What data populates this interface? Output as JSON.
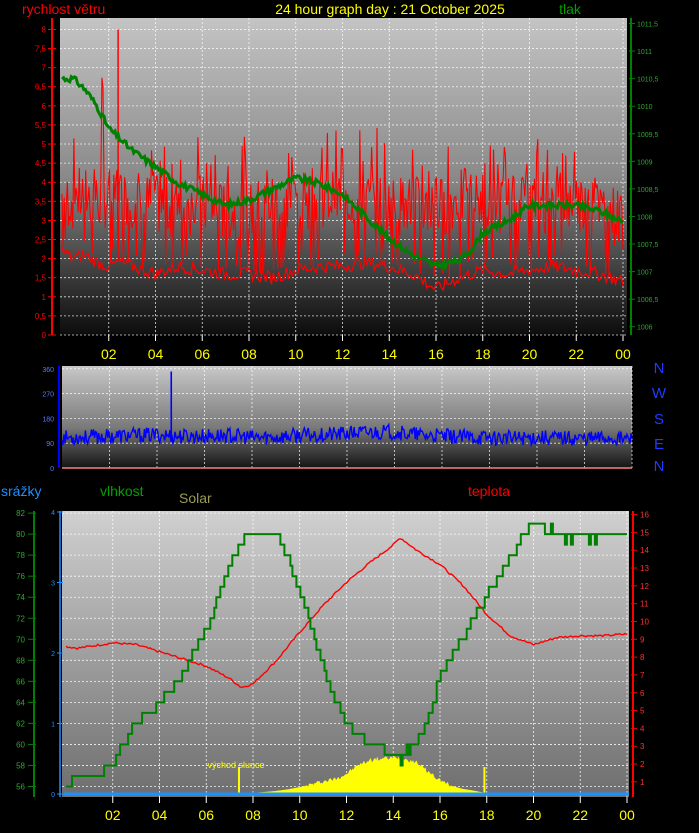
{
  "header": {
    "wind_label": "rychlost větru",
    "title": "24 hour graph day : 21 October 2025",
    "pressure_label": "tlak"
  },
  "colors": {
    "wind": "#ff0000",
    "pressure": "#008000",
    "direction": "#0000ff",
    "temperature": "#ff0000",
    "humidity": "#008000",
    "solar": "#ffff00",
    "rain": "#1e90ff",
    "title": "#ffff00",
    "tick_yellow": "#ffff00"
  },
  "compass": [
    "N",
    "W",
    "S",
    "E",
    "N"
  ],
  "lower_labels": {
    "rain": "srážky",
    "humidity": "vlhkost",
    "solar": "Solar",
    "temperature": "teplota",
    "sunrise": "východ slunce"
  },
  "chart_data": [
    {
      "type": "line",
      "name": "wind_and_pressure",
      "x_ticks": [
        "02",
        "04",
        "06",
        "08",
        "10",
        "12",
        "14",
        "16",
        "18",
        "20",
        "22",
        "00"
      ],
      "xlim_hours": [
        0,
        24
      ],
      "left_axis": {
        "ticks": [
          "0",
          "0,5",
          "1",
          "1,5",
          "2",
          "2,5",
          "3",
          "3,5",
          "4",
          "4,5",
          "5",
          "5,5",
          "6",
          "6,5",
          "7",
          "7,5",
          "8"
        ],
        "ylim": [
          0,
          8.3
        ]
      },
      "right_axis": {
        "ticks": [
          "1006",
          "1006,5",
          "1007",
          "1007,5",
          "1008",
          "1008,5",
          "1009",
          "1009,5",
          "1010",
          "1010,5",
          "1011",
          "1011,5"
        ],
        "ylim": [
          1005.85,
          1011.6
        ]
      },
      "series": [
        {
          "name": "rychlost větru",
          "axis": "left",
          "gust_high": true,
          "x": [
            0,
            0.5,
            1,
            1.5,
            2,
            2.5,
            3,
            4,
            5,
            6,
            7,
            8,
            9,
            10,
            11,
            12,
            13,
            14,
            15,
            16,
            17,
            18,
            19,
            20,
            21,
            22,
            23,
            24
          ],
          "low": [
            2.2,
            2,
            2.1,
            1.9,
            1.8,
            1.9,
            1.8,
            1.6,
            1.8,
            1.7,
            1.6,
            1.6,
            1.5,
            1.7,
            1.8,
            1.8,
            1.9,
            1.8,
            1.6,
            1.2,
            1.5,
            1.7,
            1.6,
            1.7,
            1.8,
            1.7,
            1.6,
            1.4
          ],
          "mean": [
            3.6,
            3.5,
            3.7,
            3.5,
            3.6,
            3.6,
            3.6,
            3.4,
            3.3,
            3.4,
            3.2,
            3.2,
            3.5,
            3.5,
            3.6,
            3.6,
            3.5,
            3.4,
            3.4,
            3.3,
            3.6,
            3.5,
            3.4,
            3.5,
            3.4,
            3.5,
            3.4,
            3.0
          ],
          "high": [
            5.0,
            5.2,
            5.0,
            6.3,
            7.6,
            5.8,
            5.5,
            5.5,
            5.6,
            5.2,
            5.2,
            5.2,
            4.6,
            5.3,
            5.6,
            5.3,
            5.5,
            5.4,
            5.3,
            5.2,
            5.6,
            5.2,
            5.1,
            5.2,
            5.2,
            5.2,
            4.3,
            4.0
          ]
        },
        {
          "name": "tlak",
          "axis": "right",
          "x": [
            0,
            0.5,
            1,
            1.5,
            2,
            3,
            4,
            5,
            6,
            7,
            8,
            9,
            10,
            11,
            12,
            13,
            14,
            15,
            16,
            17,
            17.5,
            18,
            19,
            20,
            21,
            22,
            23,
            24
          ],
          "y": [
            1010.5,
            1010.5,
            1010.3,
            1010.0,
            1009.6,
            1009.2,
            1008.9,
            1008.6,
            1008.4,
            1008.2,
            1008.3,
            1008.5,
            1008.7,
            1008.6,
            1008.4,
            1008.0,
            1007.6,
            1007.3,
            1007.1,
            1007.2,
            1007.4,
            1007.7,
            1007.9,
            1008.2,
            1008.2,
            1008.2,
            1008.1,
            1007.9
          ]
        }
      ]
    },
    {
      "type": "line",
      "name": "wind_direction",
      "x_ticks": [],
      "left_axis": {
        "ticks": [
          "0",
          "90",
          "180",
          "270",
          "360"
        ],
        "ylim": [
          0,
          370
        ]
      },
      "series": [
        {
          "name": "direction",
          "axis": "left",
          "spike_hour": 4.6,
          "spike_value": 350,
          "x": [
            0,
            1,
            2,
            3,
            4,
            5,
            6,
            7,
            8,
            9,
            10,
            11,
            12,
            13,
            14,
            15,
            16,
            17,
            18,
            19,
            20,
            21,
            22,
            23,
            24
          ],
          "y": [
            110,
            112,
            115,
            118,
            120,
            115,
            115,
            118,
            110,
            112,
            118,
            120,
            125,
            130,
            130,
            120,
            115,
            112,
            110,
            108,
            112,
            110,
            108,
            110,
            105
          ]
        }
      ]
    },
    {
      "type": "line",
      "name": "humidity_temperature_solar",
      "x_ticks": [
        "02",
        "04",
        "06",
        "08",
        "10",
        "12",
        "14",
        "16",
        "18",
        "20",
        "22",
        "00"
      ],
      "xlim_hours": [
        0,
        24
      ],
      "left_axis": {
        "ticks": [
          "56",
          "58",
          "60",
          "62",
          "64",
          "66",
          "68",
          "70",
          "72",
          "74",
          "76",
          "78",
          "80",
          "82"
        ],
        "ylim": [
          55,
          82.2
        ]
      },
      "rain_axis": {
        "ticks": [
          "0",
          "1",
          "2",
          "3",
          "4"
        ],
        "ylim": [
          0,
          4
        ]
      },
      "right_axis": {
        "ticks": [
          "1",
          "2",
          "3",
          "4",
          "5",
          "6",
          "7",
          "8",
          "9",
          "10",
          "11",
          "12",
          "13",
          "14",
          "15",
          "16"
        ],
        "ylim": [
          0.15,
          16.2
        ]
      },
      "sunrise_hour": 7.4,
      "sunset_hour": 17.9,
      "series": [
        {
          "name": "vlhkost",
          "axis": "left",
          "step": true,
          "x": [
            0,
            0.3,
            1,
            1.5,
            2,
            3,
            4,
            5,
            6,
            7,
            7.5,
            8,
            9,
            9.5,
            10,
            10.5,
            11,
            11.5,
            12,
            12.5,
            13,
            13.5,
            14,
            14.3,
            15,
            15.5,
            16,
            17,
            18,
            19,
            19.5,
            20,
            21,
            21.5,
            22,
            22.5,
            23,
            24
          ],
          "y": [
            55.7,
            56.8,
            56.8,
            57.5,
            58.3,
            62,
            64,
            67,
            71,
            77,
            79.5,
            80,
            80,
            77.5,
            74.5,
            71,
            67.5,
            64,
            62,
            61,
            60,
            59.5,
            59,
            58.6,
            60.5,
            62.5,
            66.5,
            70.5,
            74,
            78,
            79.5,
            81,
            80,
            79.5,
            80,
            79.5,
            80,
            80
          ]
        },
        {
          "name": "teplota",
          "axis": "right",
          "x": [
            0,
            0.5,
            1,
            2,
            3,
            4,
            5,
            6,
            7,
            7.5,
            8,
            9,
            10,
            11,
            12,
            13,
            14,
            14.3,
            15,
            16,
            17,
            18,
            19,
            20,
            21,
            22,
            23,
            24
          ],
          "y": [
            8.6,
            8.5,
            8.6,
            8.8,
            8.7,
            8.3,
            7.9,
            7.5,
            6.8,
            6.3,
            6.5,
            7.8,
            9.4,
            10.9,
            12.2,
            13.3,
            14.3,
            14.7,
            14,
            13.2,
            12,
            10.4,
            9.2,
            8.7,
            9.1,
            9.2,
            9.2,
            9.3
          ]
        },
        {
          "name": "Solar",
          "axis": "solar",
          "x": [
            7.4,
            8,
            8.5,
            9,
            9.5,
            10,
            10.5,
            11,
            11.5,
            12,
            12.5,
            13,
            13.5,
            14,
            14.5,
            15,
            15.5,
            16,
            16.5,
            17,
            17.5,
            17.9
          ],
          "y": [
            0,
            0,
            0.02,
            0.05,
            0.09,
            0.15,
            0.22,
            0.3,
            0.36,
            0.5,
            0.72,
            0.86,
            0.9,
            0.92,
            0.9,
            0.8,
            0.55,
            0.33,
            0.18,
            0.1,
            0.05,
            0
          ]
        }
      ]
    }
  ]
}
